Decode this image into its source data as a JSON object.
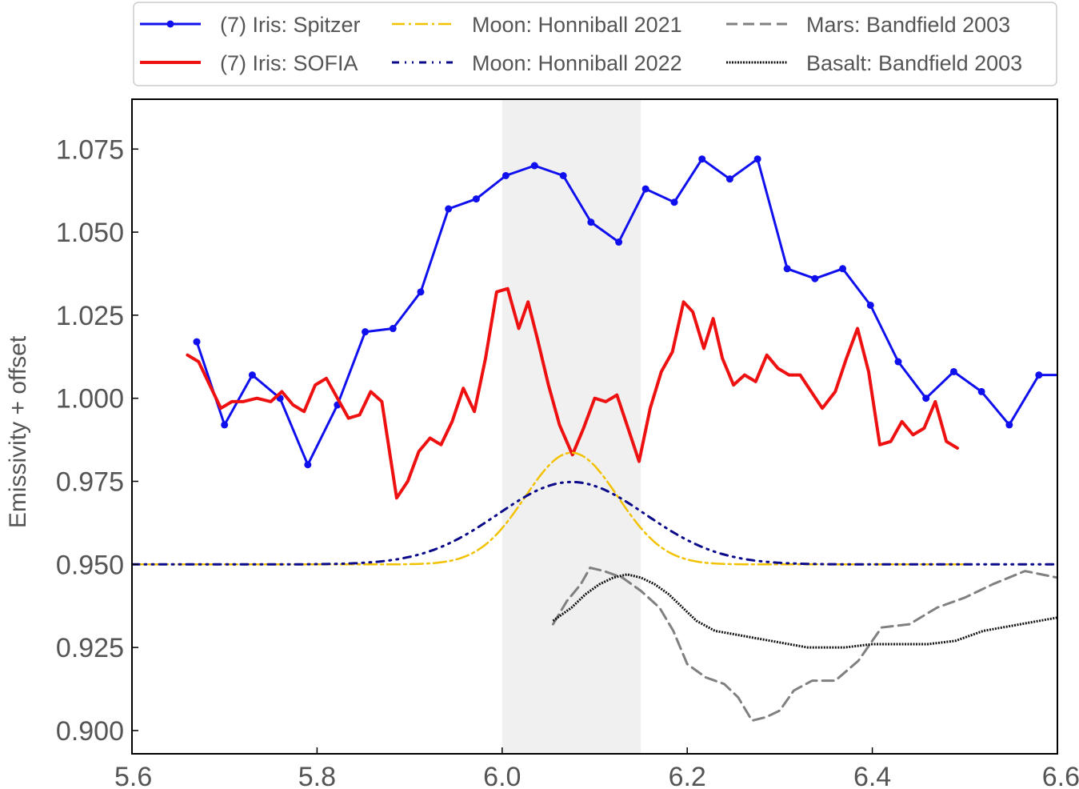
{
  "chart_data": {
    "type": "line",
    "xlabel": "",
    "ylabel": "Emissivity + offset",
    "xlim": [
      5.6,
      6.6
    ],
    "ylim": [
      0.893,
      1.09
    ],
    "xticks": [
      "5.6",
      "5.8",
      "6.0",
      "6.2",
      "6.4",
      "6.6"
    ],
    "xtick_values": [
      5.6,
      5.8,
      6.0,
      6.2,
      6.4,
      6.6
    ],
    "yticks": [
      "0.900",
      "0.925",
      "0.950",
      "0.975",
      "1.000",
      "1.025",
      "1.050",
      "1.075"
    ],
    "ytick_values": [
      0.9,
      0.925,
      0.95,
      0.975,
      1.0,
      1.025,
      1.05,
      1.075
    ],
    "grid": false,
    "legend_position": "top",
    "shaded_band": {
      "x0": 6.0,
      "x1": 6.15,
      "color": "#f0f0f0"
    },
    "series": [
      {
        "name": "(7) Iris: Spitzer",
        "color": "#1010ee",
        "style": "solid-markers",
        "x": [
          5.67,
          5.7,
          5.73,
          5.76,
          5.79,
          5.822,
          5.852,
          5.882,
          5.912,
          5.942,
          5.972,
          6.004,
          6.035,
          6.066,
          6.096,
          6.126,
          6.155,
          6.186,
          6.216,
          6.246,
          6.276,
          6.308,
          6.338,
          6.368,
          6.398,
          6.428,
          6.458,
          6.488,
          6.518,
          6.548,
          6.58,
          6.61
        ],
        "y": [
          1.017,
          0.992,
          1.007,
          1.0,
          0.98,
          0.998,
          1.02,
          1.021,
          1.032,
          1.057,
          1.06,
          1.067,
          1.07,
          1.067,
          1.053,
          1.047,
          1.063,
          1.059,
          1.072,
          1.066,
          1.072,
          1.039,
          1.036,
          1.039,
          1.028,
          1.011,
          1.0,
          1.008,
          1.002,
          0.992,
          1.007,
          1.007
        ]
      },
      {
        "name": "(7) Iris: SOFIA",
        "color": "#ee1111",
        "style": "solid",
        "x": [
          5.66,
          5.672,
          5.684,
          5.696,
          5.708,
          5.72,
          5.735,
          5.75,
          5.762,
          5.774,
          5.786,
          5.798,
          5.81,
          5.822,
          5.834,
          5.846,
          5.858,
          5.87,
          5.886,
          5.898,
          5.91,
          5.922,
          5.934,
          5.946,
          5.958,
          5.97,
          5.982,
          5.994,
          6.006,
          6.018,
          6.028,
          6.038,
          6.05,
          6.062,
          6.076,
          6.088,
          6.1,
          6.112,
          6.124,
          6.136,
          6.148,
          6.16,
          6.172,
          6.184,
          6.196,
          6.206,
          6.218,
          6.228,
          6.238,
          6.25,
          6.262,
          6.274,
          6.286,
          6.298,
          6.31,
          6.322,
          6.334,
          6.346,
          6.36,
          6.372,
          6.384,
          6.396,
          6.408,
          6.42,
          6.432,
          6.444,
          6.456,
          6.468,
          6.48,
          6.492
        ],
        "y": [
          1.013,
          1.011,
          1.004,
          0.997,
          0.999,
          0.999,
          1.0,
          0.999,
          1.002,
          0.998,
          0.996,
          1.004,
          1.006,
          1.0,
          0.994,
          0.995,
          1.002,
          0.999,
          0.97,
          0.975,
          0.984,
          0.988,
          0.986,
          0.993,
          1.003,
          0.996,
          1.012,
          1.032,
          1.033,
          1.021,
          1.029,
          1.018,
          1.004,
          0.992,
          0.983,
          0.991,
          1.0,
          0.999,
          1.001,
          0.991,
          0.981,
          0.997,
          1.008,
          1.014,
          1.029,
          1.026,
          1.015,
          1.024,
          1.012,
          1.004,
          1.007,
          1.005,
          1.013,
          1.009,
          1.007,
          1.007,
          1.002,
          0.997,
          1.002,
          1.012,
          1.021,
          1.008,
          0.986,
          0.987,
          0.993,
          0.989,
          0.991,
          0.999,
          0.987,
          0.985
        ]
      },
      {
        "name": "Moon: Honniball 2021",
        "color": "#f2c200",
        "style": "dashdot",
        "gaussian": {
          "baseline": 0.95,
          "amplitude": 0.0336,
          "center": 6.075,
          "sigma": 0.05,
          "x_start": 5.6,
          "x_end": 6.5
        }
      },
      {
        "name": "Moon: Honniball 2022",
        "color": "#0a0a8a",
        "style": "dashdotdot",
        "gaussian": {
          "baseline": 0.95,
          "amplitude": 0.0248,
          "center": 6.075,
          "sigma": 0.08,
          "x_start": 5.6,
          "x_end": 6.6
        }
      },
      {
        "name": "Mars: Bandfield 2003",
        "color": "#808080",
        "style": "dashed",
        "x": [
          6.055,
          6.07,
          6.085,
          6.095,
          6.11,
          6.13,
          6.15,
          6.17,
          6.185,
          6.2,
          6.22,
          6.24,
          6.255,
          6.27,
          6.285,
          6.3,
          6.315,
          6.335,
          6.36,
          6.385,
          6.41,
          6.44,
          6.47,
          6.5,
          6.53,
          6.565,
          6.6
        ],
        "y": [
          0.932,
          0.939,
          0.944,
          0.949,
          0.948,
          0.946,
          0.942,
          0.937,
          0.93,
          0.92,
          0.916,
          0.914,
          0.91,
          0.903,
          0.904,
          0.906,
          0.912,
          0.915,
          0.915,
          0.921,
          0.931,
          0.932,
          0.937,
          0.94,
          0.944,
          0.948,
          0.946
        ]
      },
      {
        "name": "Basalt: Bandfield 2003",
        "color": "#111111",
        "style": "dotted",
        "x": [
          6.055,
          6.075,
          6.09,
          6.105,
          6.12,
          6.135,
          6.15,
          6.165,
          6.18,
          6.195,
          6.21,
          6.23,
          6.25,
          6.27,
          6.29,
          6.31,
          6.33,
          6.35,
          6.37,
          6.4,
          6.43,
          6.46,
          6.49,
          6.52,
          6.56,
          6.6
        ],
        "y": [
          0.933,
          0.937,
          0.941,
          0.944,
          0.946,
          0.947,
          0.946,
          0.944,
          0.941,
          0.937,
          0.933,
          0.93,
          0.929,
          0.928,
          0.927,
          0.926,
          0.925,
          0.925,
          0.925,
          0.926,
          0.926,
          0.926,
          0.927,
          0.93,
          0.932,
          0.934
        ]
      }
    ]
  }
}
